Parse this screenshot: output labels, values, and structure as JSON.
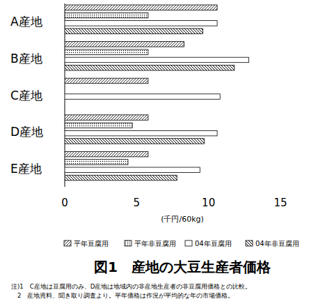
{
  "chart_data": {
    "type": "bar",
    "orientation": "horizontal",
    "title": "図1　産地の大豆生産者価格",
    "x_label": "(千円/60kg)",
    "notes": [
      "注)1　C産地は豆腐用のみ、D産地は地域内の非産地生産者の非豆腐用価格との比較。",
      "　2　産地資料、聞き取り調査より。平年価格は作況が平均的な年の市場価格。"
    ],
    "categories": [
      "A産地",
      "B産地",
      "C産地",
      "D産地",
      "E産地"
    ],
    "series": [
      {
        "name": "平年豆腐用",
        "color": "#000000",
        "values": [
          10.6,
          8.3,
          5.8,
          5.8,
          5.8
        ]
      },
      {
        "name": "平年非豆腐用",
        "color": "#000000",
        "values": [
          5.8,
          5.8,
          null,
          4.7,
          4.4
        ]
      },
      {
        "name": "04年豆腐用",
        "color": "#000000",
        "values": [
          10.6,
          12.8,
          10.8,
          10.6,
          9.4
        ]
      },
      {
        "name": "04年非豆腐用",
        "color": "#000000",
        "values": [
          9.6,
          11.8,
          null,
          9.7,
          7.8
        ]
      }
    ],
    "xlim": [
      0,
      15
    ],
    "xticks": [
      0,
      5,
      10,
      15
    ],
    "grid": false,
    "legend": "bottom"
  }
}
